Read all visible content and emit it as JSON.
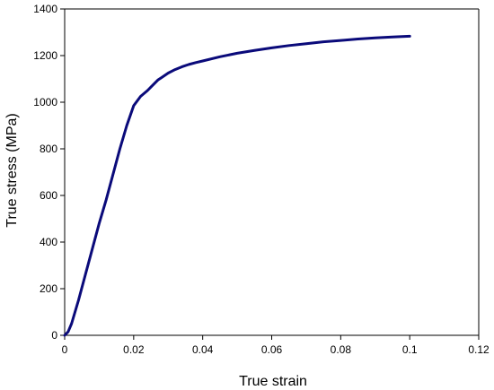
{
  "chart_data": {
    "type": "line",
    "xlabel": "True strain",
    "ylabel": "True stress (MPa)",
    "xlim": [
      0,
      0.12
    ],
    "ylim": [
      0,
      1400
    ],
    "x_ticks": [
      "0",
      "0.02",
      "0.04",
      "0.06",
      "0.08",
      "0.1",
      "0.12"
    ],
    "y_ticks": [
      "0",
      "200",
      "400",
      "600",
      "800",
      "1000",
      "1200",
      "1400"
    ],
    "grid": false,
    "legend": "none",
    "colors": {
      "line": "#0a0a7a",
      "axis": "#000000"
    },
    "series": [
      {
        "x": [
          0,
          0.001,
          0.002,
          0.004,
          0.006,
          0.008,
          0.01,
          0.012,
          0.014,
          0.016,
          0.018,
          0.02,
          0.022,
          0.024,
          0.025,
          0.026,
          0.027,
          0.028,
          0.03,
          0.032,
          0.034,
          0.036,
          0.038,
          0.04,
          0.045,
          0.05,
          0.055,
          0.06,
          0.065,
          0.07,
          0.075,
          0.08,
          0.085,
          0.09,
          0.095,
          0.1
        ],
        "y": [
          0,
          15,
          50,
          150,
          260,
          370,
          480,
          580,
          690,
          800,
          900,
          985,
          1025,
          1050,
          1065,
          1080,
          1095,
          1105,
          1125,
          1140,
          1152,
          1162,
          1170,
          1177,
          1195,
          1210,
          1222,
          1233,
          1243,
          1251,
          1259,
          1265,
          1271,
          1276,
          1280,
          1283
        ]
      }
    ]
  }
}
